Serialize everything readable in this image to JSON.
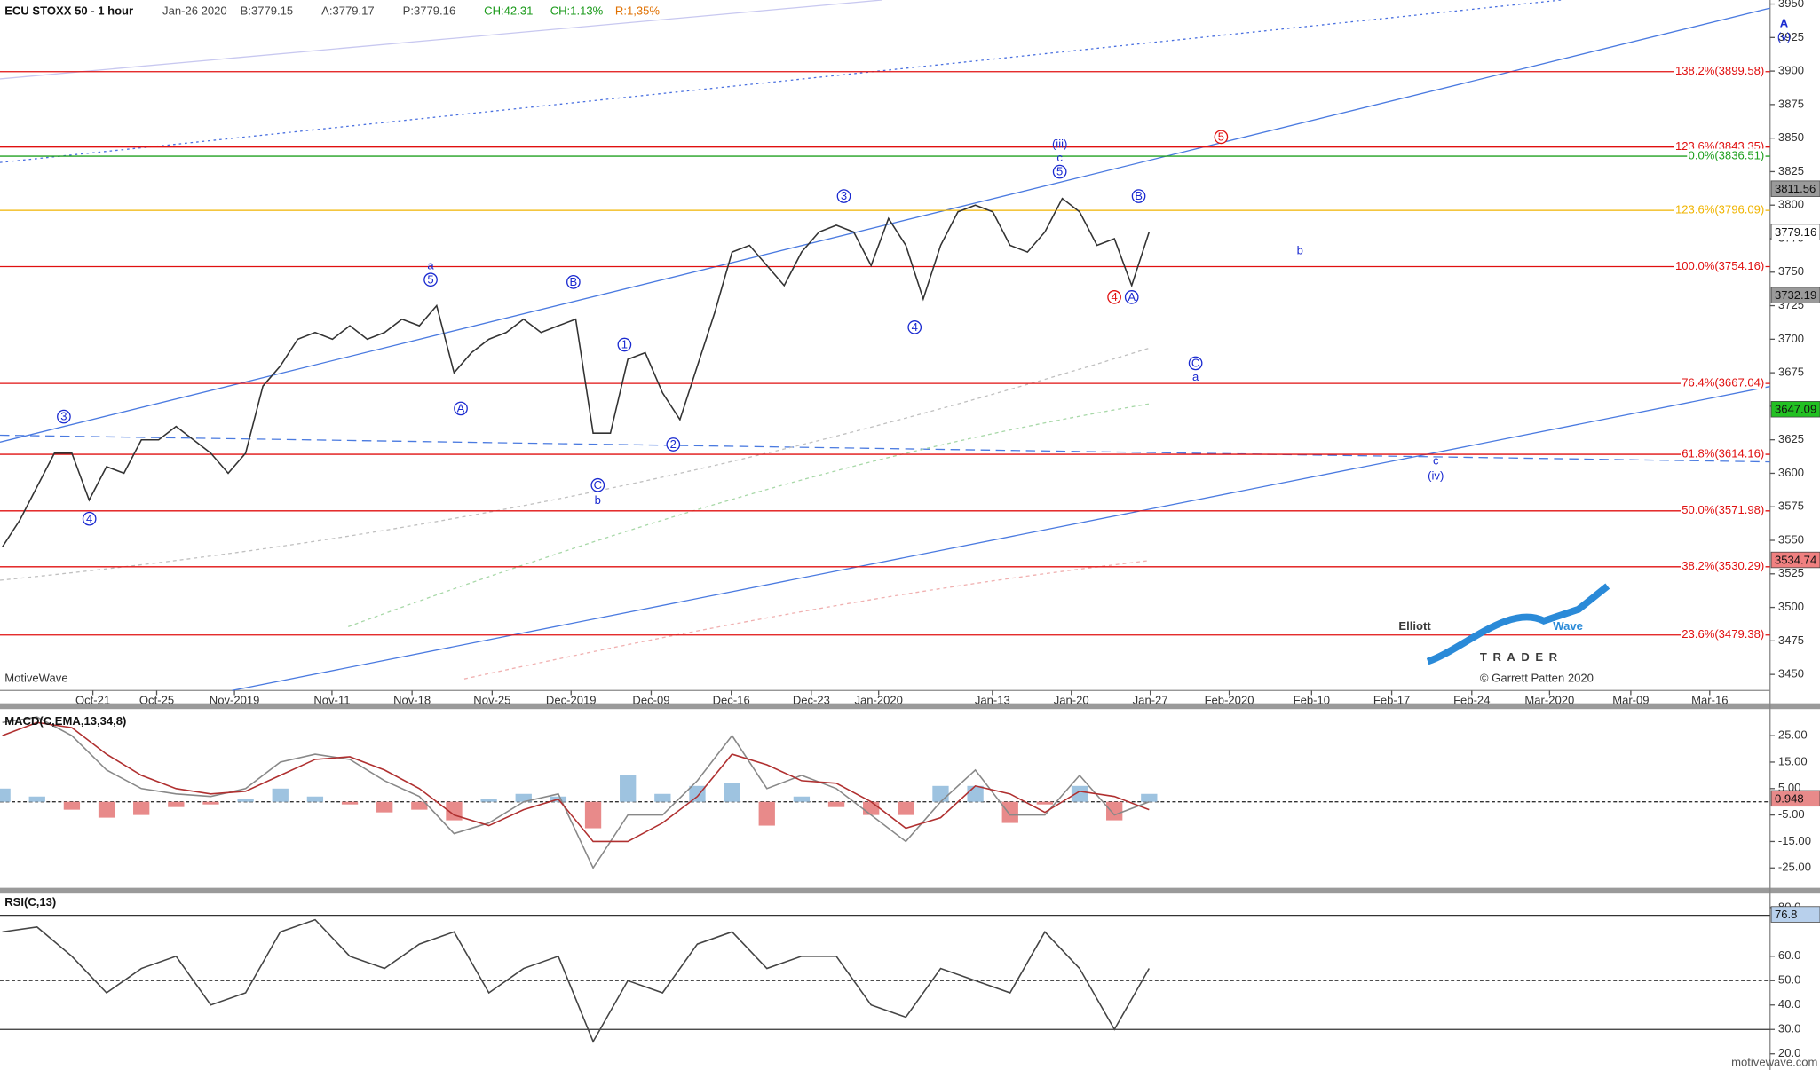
{
  "chart_data": [
    {
      "type": "line",
      "title": "ECU STOXX 50 - 1 hour",
      "header": [
        "Jan-26 2020",
        "B:3779.15",
        "A:3779.17",
        "P:3779.16",
        "CH:42.31",
        "CH:1.13%",
        "R:1,35%"
      ],
      "watermark": "MotiveWave",
      "x_ticks": [
        "Oct-21",
        "Oct-25",
        "Nov-2019",
        "Nov-11",
        "Nov-18",
        "Nov-25",
        "Dec-2019",
        "Dec-09",
        "Dec-16",
        "Dec-23",
        "Jan-2020",
        "Jan-13",
        "Jan-20",
        "Jan-27",
        "Feb-2020",
        "Feb-10",
        "Feb-17",
        "Feb-24",
        "Mar-2020",
        "Mar-09",
        "Mar-16"
      ],
      "ylim": [
        3438,
        3953
      ],
      "yticks": [
        3450,
        3475,
        3500,
        3525,
        3550,
        3575,
        3600,
        3625,
        3650,
        3675,
        3700,
        3725,
        3750,
        3775,
        3800,
        3825,
        3850,
        3875,
        3900,
        3925,
        3950
      ],
      "series": [
        {
          "color": "#333333",
          "values": [
            3545,
            3565,
            3590,
            3615,
            3615,
            3580,
            3605,
            3600,
            3625,
            3625,
            3635,
            3625,
            3615,
            3600,
            3615,
            3665,
            3680,
            3700,
            3705,
            3700,
            3710,
            3700,
            3705,
            3715,
            3710,
            3725,
            3675,
            3690,
            3700,
            3705,
            3715,
            3705,
            3710,
            3715,
            3630,
            3630,
            3685,
            3690,
            3660,
            3640,
            3680,
            3720,
            3765,
            3770,
            3755,
            3740,
            3765,
            3780,
            3785,
            3780,
            3755,
            3790,
            3770,
            3730,
            3770,
            3795,
            3800,
            3795,
            3770,
            3765,
            3780,
            3805,
            3795,
            3770,
            3775,
            3740,
            3780
          ]
        }
      ],
      "levels": [
        {
          "label": "138.2%(3899.58)",
          "value": 3899.58,
          "color": "#e01010"
        },
        {
          "label": "123.6%(3843.35)",
          "value": 3843.35,
          "color": "#e01010"
        },
        {
          "label": "0.0%(3836.51)",
          "value": 3836.51,
          "color": "#20a020"
        },
        {
          "label": "123.6%(3796.09)",
          "value": 3796.09,
          "color": "#f0b400"
        },
        {
          "label": "100.0%(3754.16)",
          "value": 3754.16,
          "color": "#e01010"
        },
        {
          "label": "76.4%(3667.04)",
          "value": 3667.04,
          "color": "#e01010"
        },
        {
          "label": "61.8%(3614.16)",
          "value": 3614.16,
          "color": "#e01010"
        },
        {
          "label": "50.0%(3571.98)",
          "value": 3571.98,
          "color": "#e01010"
        },
        {
          "label": "38.2%(3530.29)",
          "value": 3530.29,
          "color": "#e01010"
        },
        {
          "label": "23.6%(3479.38)",
          "value": 3479.38,
          "color": "#e01010"
        }
      ],
      "price_markers": [
        {
          "value": 3811.56,
          "color": "#9a9a9a"
        },
        {
          "value": 3779.16,
          "color": "#ffffff"
        },
        {
          "value": 3732.19,
          "color": "#9a9a9a"
        },
        {
          "value": 3647.09,
          "color": "#22c022"
        },
        {
          "value": 3534.74,
          "color": "#f08080"
        }
      ],
      "wave_labels": [
        "3",
        "4",
        "a",
        "5",
        "A",
        "B",
        "1",
        "2",
        "C",
        "b",
        "3",
        "4",
        "(iii)",
        "c",
        "5",
        "B",
        "4",
        "A",
        "5",
        "b",
        "C",
        "a",
        "c",
        "(iv)",
        "A",
        "(v)"
      ]
    },
    {
      "type": "macd",
      "title": "MACD(C,EMA,13,34,8)",
      "ylim": [
        -32.5,
        34.6
      ],
      "yticks": [
        {
          "value": 25,
          "label": "25.00"
        },
        {
          "value": 15,
          "label": "15.00"
        },
        {
          "value": 5,
          "label": "5.00"
        },
        {
          "value": -5,
          "label": "-5.00"
        },
        {
          "value": -15,
          "label": "-15.00"
        },
        {
          "value": -25,
          "label": "-25.00"
        }
      ],
      "series": [
        {
          "color": "#888888",
          "values": [
            30,
            32,
            25,
            12,
            5,
            3,
            2,
            5,
            15,
            18,
            16,
            8,
            2,
            -12,
            -8,
            0,
            3,
            -25,
            -5,
            -5,
            8,
            25,
            5,
            10,
            5,
            -5,
            -15,
            0,
            12,
            -5,
            -5,
            10,
            -5,
            0
          ]
        },
        {
          "color": "#b03030",
          "values": [
            25,
            30,
            28,
            18,
            10,
            5,
            3,
            4,
            10,
            16,
            17,
            12,
            5,
            -5,
            -9,
            -3,
            1,
            -15,
            -15,
            -8,
            2,
            18,
            14,
            8,
            7,
            0,
            -10,
            -6,
            6,
            3,
            -4,
            4,
            2,
            -3
          ]
        }
      ],
      "histogram": {
        "up_color": "#9ec3e0",
        "down_color": "#e88a8a",
        "values": [
          5,
          2,
          -3,
          -6,
          -5,
          -2,
          -1,
          1,
          5,
          2,
          -1,
          -4,
          -3,
          -7,
          1,
          3,
          2,
          -10,
          10,
          3,
          6,
          7,
          -9,
          2,
          -2,
          -5,
          -5,
          6,
          6,
          -8,
          -1,
          6,
          -7,
          3
        ]
      },
      "marker": 0.948
    },
    {
      "type": "rsi",
      "title": "RSI(C,13)",
      "ylim": [
        14.3,
        85.7
      ],
      "yticks": [
        {
          "value": 80,
          "label": "80.0"
        },
        {
          "value": 60,
          "label": "60.0"
        },
        {
          "value": 50,
          "label": "50.0"
        },
        {
          "value": 40,
          "label": "40.0"
        },
        {
          "value": 30,
          "label": "30.0"
        },
        {
          "value": 20,
          "label": "20.0"
        }
      ],
      "series": [
        {
          "color": "#444444",
          "values": [
            70,
            72,
            60,
            45,
            55,
            60,
            40,
            45,
            70,
            75,
            60,
            55,
            65,
            70,
            45,
            55,
            60,
            25,
            50,
            45,
            65,
            70,
            55,
            60,
            60,
            40,
            35,
            55,
            50,
            45,
            70,
            55,
            30,
            55
          ]
        }
      ],
      "marker": 76.8
    }
  ],
  "logo": {
    "word1": "Elliott",
    "word2": "Wave",
    "word3": "TRADER",
    "credit": "© Garrett Patten 2020"
  },
  "footer": "motivewave.com"
}
